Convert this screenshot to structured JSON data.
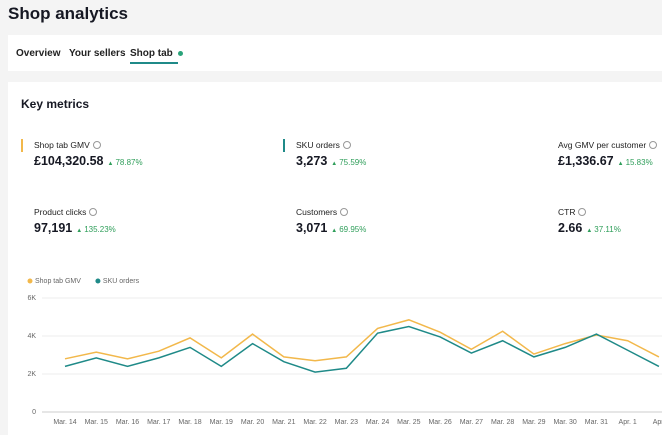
{
  "title": "Shop analytics",
  "tabs": [
    "Overview",
    "Your sellers",
    "Shop tab"
  ],
  "card_title": "Key metrics",
  "metrics": [
    {
      "label": "Shop tab GMV",
      "value": "£104,320.58",
      "change": "78.87%"
    },
    {
      "label": "SKU orders",
      "value": "3,273",
      "change": "75.59%"
    },
    {
      "label": "Avg GMV per customer",
      "value": "£1,336.67",
      "change": "15.83%"
    },
    {
      "label": "Product clicks",
      "value": "97,191",
      "change": "135.23%"
    },
    {
      "label": "Customers",
      "value": "3,071",
      "change": "69.95%"
    },
    {
      "label": "CTR",
      "value": "2.66",
      "change": "37.11%"
    }
  ],
  "chart_data": {
    "type": "line",
    "categories": [
      "Mar. 14",
      "Mar. 15",
      "Mar. 16",
      "Mar. 17",
      "Mar. 18",
      "Mar. 19",
      "Mar. 20",
      "Mar. 21",
      "Mar. 22",
      "Mar. 23",
      "Mar. 24",
      "Mar. 25",
      "Mar. 26",
      "Mar. 27",
      "Mar. 28",
      "Mar. 29",
      "Mar. 30",
      "Mar. 31",
      "Apr. 1",
      "Apr."
    ],
    "series": [
      {
        "name": "Shop tab GMV",
        "color": "#f2b84b",
        "values": [
          2800,
          3150,
          2800,
          3200,
          3900,
          2850,
          4100,
          2900,
          2700,
          2900,
          4400,
          4850,
          4200,
          3300,
          4250,
          3050,
          3600,
          4050,
          3750,
          2900
        ]
      },
      {
        "name": "SKU orders",
        "color": "#1f8a88",
        "values": [
          2400,
          2850,
          2400,
          2850,
          3400,
          2400,
          3600,
          2650,
          2100,
          2300,
          4150,
          4500,
          3950,
          3100,
          3750,
          2900,
          3400,
          4100,
          3250,
          2400
        ]
      }
    ],
    "ylim": [
      0,
      6000
    ],
    "yticks": [
      0,
      {
        "value": 2000,
        "label": "2K"
      },
      {
        "value": 4000,
        "label": "4K"
      },
      {
        "value": 6000,
        "label": "6K"
      }
    ],
    "grid": true
  }
}
